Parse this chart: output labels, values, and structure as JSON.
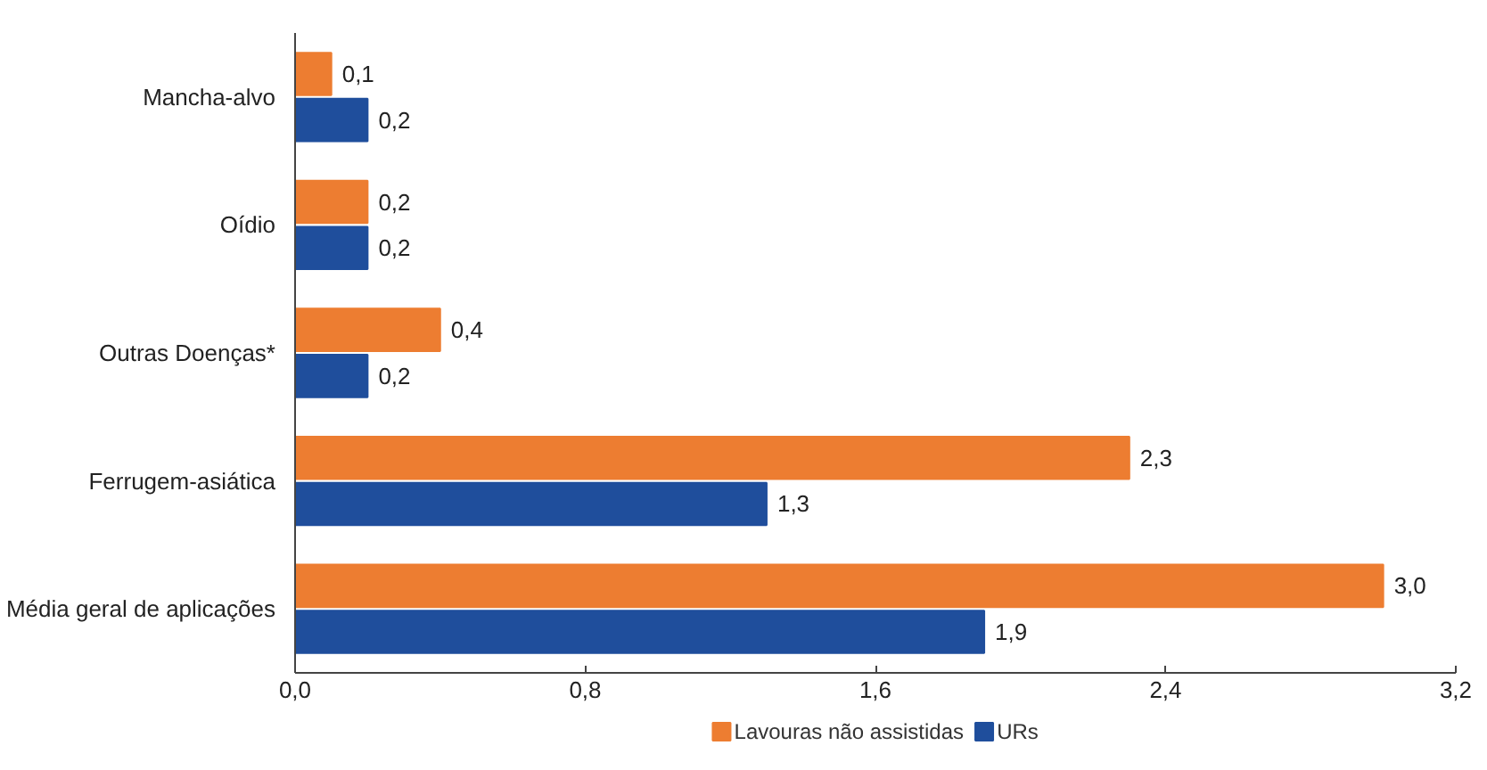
{
  "chart_data": {
    "type": "bar",
    "orientation": "horizontal",
    "categories": [
      "Mancha-alvo",
      "Oídio",
      "Outras Doenças*",
      "Ferrugem-asiática",
      "Média geral de aplicações"
    ],
    "series": [
      {
        "name": "Lavouras não assistidas",
        "color": "#ed7d31",
        "values": [
          0.1,
          0.2,
          0.4,
          2.3,
          3.0
        ],
        "value_labels": [
          "0,1",
          "0,2",
          "0,4",
          "2,3",
          "3,0"
        ]
      },
      {
        "name": "URs",
        "color": "#1f4e9c",
        "values": [
          0.2,
          0.2,
          0.2,
          1.3,
          1.9
        ],
        "value_labels": [
          "0,2",
          "0,2",
          "0,2",
          "1,3",
          "1,9"
        ]
      }
    ],
    "xlim": [
      0,
      3.2
    ],
    "xticks": [
      {
        "value": 0,
        "label": "0,0"
      },
      {
        "value": 0.8,
        "label": "0,8"
      },
      {
        "value": 1.6,
        "label": "1,6"
      },
      {
        "value": 2.4,
        "label": "2,4"
      },
      {
        "value": 3.2,
        "label": "3,2"
      }
    ],
    "grid": false,
    "legend": "bottom"
  }
}
